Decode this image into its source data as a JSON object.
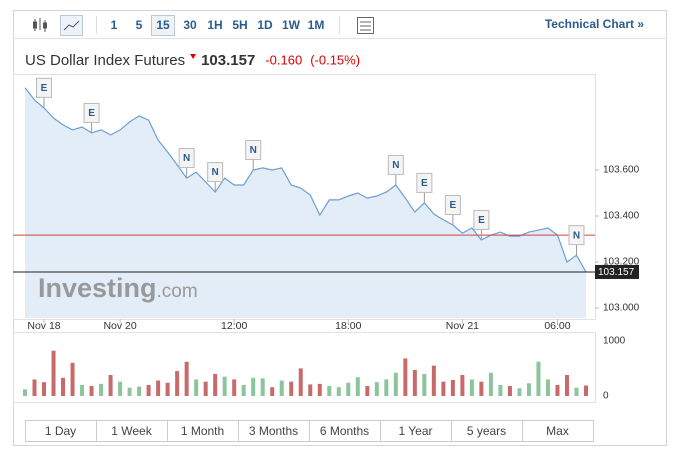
{
  "toolbar": {
    "intervals": [
      "1",
      "5",
      "15",
      "30",
      "1H",
      "5H",
      "1D",
      "1W",
      "1M"
    ],
    "active": 2,
    "link": "Technical Chart »"
  },
  "header": {
    "title": "US Dollar Index Futures",
    "change": "-0.160",
    "change_pct": "(-0.15%)"
  },
  "chart": {
    "type": "line",
    "last_price": 103.157,
    "prev_close": 103.317,
    "ylim": [
      102.957,
      103.991
    ],
    "xlim": [
      0,
      59
    ],
    "yticks": [
      {
        "value": 103.0,
        "label": "103.000"
      },
      {
        "value": 103.2,
        "label": "103.200"
      },
      {
        "value": 103.4,
        "label": "103.400"
      },
      {
        "value": 103.6,
        "label": "103.600"
      }
    ],
    "xticks": [
      {
        "value": 2,
        "label": "Nov 18"
      },
      {
        "value": 10,
        "label": "Nov 20"
      },
      {
        "value": 22,
        "label": "12:00"
      },
      {
        "value": 34,
        "label": "18:00"
      },
      {
        "value": 46,
        "label": "Nov 21"
      },
      {
        "value": 56,
        "label": "06:00"
      }
    ],
    "price": {
      "color": "#6b9fd3",
      "fill": "#e3edf7",
      "values": [
        103.957,
        103.904,
        103.87,
        103.826,
        103.796,
        103.774,
        103.787,
        103.761,
        103.774,
        103.752,
        103.774,
        103.809,
        103.835,
        103.817,
        103.73,
        103.678,
        103.622,
        103.565,
        103.591,
        103.548,
        103.504,
        103.565,
        103.535,
        103.535,
        103.6,
        103.609,
        103.6,
        103.609,
        103.535,
        103.522,
        103.491,
        103.404,
        103.47,
        103.47,
        103.487,
        103.5,
        103.478,
        103.487,
        103.504,
        103.535,
        103.478,
        103.417,
        103.457,
        103.409,
        103.383,
        103.361,
        103.326,
        103.348,
        103.296,
        103.317,
        103.33,
        103.313,
        103.313,
        103.33,
        103.339,
        103.348,
        103.317,
        103.2,
        103.23,
        103.157
      ]
    },
    "events": [
      {
        "label": "E",
        "index": 2
      },
      {
        "label": "E",
        "index": 7
      },
      {
        "label": "N",
        "index": 17
      },
      {
        "label": "N",
        "index": 20
      },
      {
        "label": "N",
        "index": 24
      },
      {
        "label": "N",
        "index": 39
      },
      {
        "label": "E",
        "index": 42
      },
      {
        "label": "E",
        "index": 45
      },
      {
        "label": "E",
        "index": 48
      },
      {
        "label": "N",
        "index": 58
      }
    ],
    "watermark": {
      "brand": "Investing",
      "suffix": ".com"
    },
    "volume": {
      "ylim": [
        0,
        1050
      ],
      "yticks": [
        0,
        1000
      ],
      "up_color": "#8cc49c",
      "down_color": "#c96a6a",
      "values": [
        120,
        300,
        250,
        820,
        330,
        600,
        200,
        180,
        220,
        380,
        260,
        150,
        170,
        200,
        280,
        240,
        450,
        620,
        300,
        260,
        400,
        350,
        300,
        200,
        330,
        320,
        160,
        280,
        260,
        500,
        210,
        220,
        180,
        160,
        240,
        340,
        180,
        250,
        300,
        420,
        680,
        470,
        400,
        550,
        260,
        290,
        380,
        300,
        260,
        420,
        200,
        180,
        140,
        230,
        620,
        300,
        200,
        380,
        150,
        190
      ]
    }
  },
  "ranges": [
    "1 Day",
    "1 Week",
    "1 Month",
    "3 Months",
    "6 Months",
    "1 Year",
    "5 years",
    "Max"
  ]
}
